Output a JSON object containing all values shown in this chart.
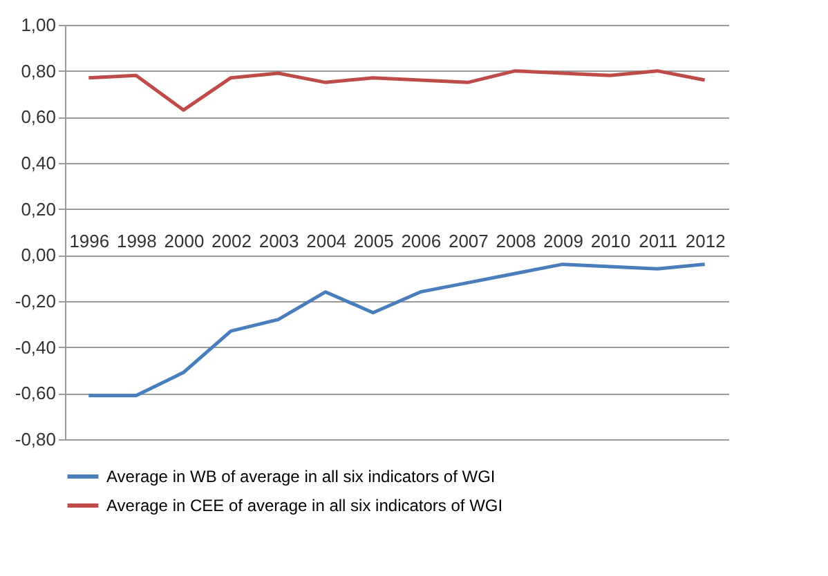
{
  "chart_data": {
    "type": "line",
    "categories": [
      "1996",
      "1998",
      "2000",
      "2002",
      "2003",
      "2004",
      "2005",
      "2006",
      "2007",
      "2008",
      "2009",
      "2010",
      "2011",
      "2012"
    ],
    "series": [
      {
        "name": "Average in WB of average in all six indicators of WGI",
        "color": "#4a7ebb",
        "values": [
          -0.61,
          -0.61,
          -0.51,
          -0.33,
          -0.28,
          -0.16,
          -0.25,
          -0.16,
          -0.12,
          -0.08,
          -0.04,
          -0.05,
          -0.06,
          -0.04
        ]
      },
      {
        "name": "Average in CEE of average in all six indicators of WGI",
        "color": "#be4b48",
        "values": [
          0.77,
          0.78,
          0.63,
          0.77,
          0.79,
          0.75,
          0.77,
          0.76,
          0.75,
          0.8,
          0.79,
          0.78,
          0.8,
          0.76
        ]
      }
    ],
    "ylim": [
      -0.8,
      1
    ],
    "yticks": [
      {
        "value": -0.8,
        "label": "-0,80"
      },
      {
        "value": -0.6,
        "label": "-0,60"
      },
      {
        "value": -0.4,
        "label": "-0,40"
      },
      {
        "value": -0.2,
        "label": "-0,20"
      },
      {
        "value": 0,
        "label": "0,00"
      },
      {
        "value": 0.2,
        "label": "0,20"
      },
      {
        "value": 0.4,
        "label": "0,40"
      },
      {
        "value": 0.6,
        "label": "0,60"
      },
      {
        "value": 0.8,
        "label": "0,80"
      },
      {
        "value": 1,
        "label": "1,00"
      }
    ],
    "grid": "y",
    "legend": "bottom",
    "marker": "none",
    "line_style": "solid"
  }
}
